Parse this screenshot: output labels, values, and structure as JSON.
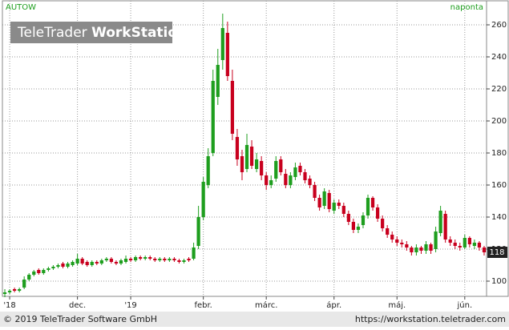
{
  "chart_data": {
    "type": "candlestick",
    "symbol": "AUTOW",
    "interval": "naponta",
    "watermark": {
      "light": "TeleTrader",
      "bold": "WorkStation"
    },
    "footer_left": "© 2019 TeleTrader Software GmbH",
    "footer_right": "https://workstation.teletrader.com",
    "last_price": 118,
    "up_color": "#1e9e1e",
    "down_color": "#c8001e",
    "grid": true,
    "categories": [
      null,
      null,
      null,
      null,
      null,
      null,
      null,
      null,
      null,
      null,
      null,
      null,
      null,
      null,
      null,
      null,
      null,
      null,
      null,
      null,
      null,
      null,
      null,
      null,
      null,
      null,
      null,
      null,
      null,
      null,
      null,
      null,
      null,
      null,
      null,
      null,
      null,
      null,
      null,
      null,
      null,
      null,
      null,
      null,
      null,
      null,
      null,
      null,
      null,
      null,
      null,
      null,
      null,
      null,
      null,
      null,
      null,
      null,
      null,
      null,
      null,
      null,
      null,
      null,
      null,
      null,
      null,
      null,
      null,
      null,
      null,
      null,
      null,
      null,
      null,
      null,
      null,
      null,
      null,
      null,
      null,
      null,
      null,
      null,
      null,
      null,
      null,
      null,
      null,
      null,
      null,
      null,
      null,
      null,
      null,
      null,
      null,
      null,
      null,
      null
    ],
    "open": [
      92,
      93,
      95,
      94,
      96,
      101,
      104,
      107,
      105,
      107,
      108,
      109,
      111,
      109,
      110,
      111,
      114,
      112,
      110,
      112,
      111,
      113,
      114,
      112,
      111,
      112,
      114,
      113,
      115,
      114,
      115,
      114,
      113,
      114,
      113,
      114,
      113,
      112,
      114,
      114,
      122,
      140,
      160,
      180,
      215,
      238,
      255,
      225,
      190,
      178,
      170,
      184,
      170,
      175,
      166,
      160,
      164,
      176,
      167,
      160,
      165,
      172,
      168,
      164,
      160,
      152,
      147,
      155,
      144,
      149,
      147,
      142,
      137,
      132,
      135,
      141,
      152,
      146,
      139,
      133,
      129,
      126,
      124,
      123,
      121,
      118,
      121,
      119,
      123,
      120,
      130,
      142,
      126,
      124,
      122,
      121,
      127,
      122,
      124,
      121
    ],
    "high": [
      95,
      95,
      96,
      96,
      103,
      105,
      107,
      108,
      108,
      109,
      110,
      111,
      112,
      112,
      113,
      117,
      115,
      113,
      113,
      113,
      114,
      115,
      115,
      113,
      114,
      116,
      115,
      116,
      116,
      116,
      116,
      115,
      115,
      115,
      115,
      115,
      114,
      114,
      115,
      124,
      147,
      165,
      183,
      232,
      245,
      267,
      262,
      232,
      195,
      182,
      192,
      188,
      180,
      178,
      168,
      166,
      178,
      178,
      170,
      168,
      174,
      174,
      170,
      166,
      162,
      154,
      158,
      157,
      151,
      151,
      149,
      144,
      139,
      136,
      143,
      154,
      153,
      148,
      141,
      135,
      131,
      128,
      126,
      125,
      122,
      123,
      122,
      125,
      124,
      134,
      147,
      144,
      128,
      126,
      124,
      129,
      128,
      126,
      125,
      122
    ],
    "low": [
      90,
      92,
      93,
      93,
      95,
      100,
      103,
      104,
      104,
      106,
      107,
      108,
      108,
      108,
      109,
      110,
      110,
      109,
      109,
      110,
      110,
      112,
      111,
      110,
      110,
      111,
      112,
      112,
      113,
      113,
      113,
      112,
      112,
      112,
      112,
      112,
      111,
      111,
      112,
      113,
      120,
      138,
      158,
      178,
      210,
      232,
      225,
      188,
      172,
      163,
      168,
      170,
      168,
      163,
      157,
      158,
      162,
      166,
      158,
      158,
      163,
      166,
      161,
      158,
      150,
      144,
      145,
      143,
      142,
      145,
      140,
      135,
      130,
      130,
      133,
      139,
      144,
      137,
      131,
      127,
      124,
      122,
      121,
      119,
      116,
      116,
      117,
      117,
      117,
      118,
      128,
      124,
      122,
      120,
      119,
      120,
      121,
      120,
      119,
      116
    ],
    "close": [
      93,
      94,
      94,
      95,
      101,
      104,
      106,
      105,
      107,
      108,
      109,
      110,
      109,
      111,
      112,
      114,
      111,
      110,
      112,
      111,
      113,
      114,
      112,
      111,
      113,
      114,
      113,
      115,
      114,
      115,
      114,
      113,
      114,
      113,
      114,
      113,
      112,
      113,
      113,
      121,
      140,
      162,
      178,
      225,
      235,
      258,
      228,
      192,
      176,
      168,
      185,
      172,
      176,
      166,
      160,
      163,
      175,
      168,
      160,
      166,
      171,
      168,
      163,
      160,
      152,
      146,
      156,
      145,
      149,
      147,
      142,
      137,
      132,
      134,
      141,
      152,
      146,
      139,
      133,
      129,
      126,
      124,
      123,
      121,
      118,
      121,
      119,
      123,
      119,
      131,
      144,
      126,
      124,
      122,
      121,
      127,
      123,
      124,
      121,
      118
    ],
    "xticks": [
      {
        "value": 1,
        "label": "'18"
      },
      {
        "value": 15,
        "label": "dec."
      },
      {
        "value": 26,
        "label": "'19"
      },
      {
        "value": 41,
        "label": "febr."
      },
      {
        "value": 54,
        "label": "márc."
      },
      {
        "value": 68,
        "label": "ápr."
      },
      {
        "value": 81,
        "label": "máj."
      },
      {
        "value": 95,
        "label": "jún."
      }
    ],
    "ylim": [
      90.5,
      266.5
    ],
    "yticks": [
      100,
      120,
      140,
      160,
      180,
      200,
      220,
      240,
      260
    ]
  }
}
